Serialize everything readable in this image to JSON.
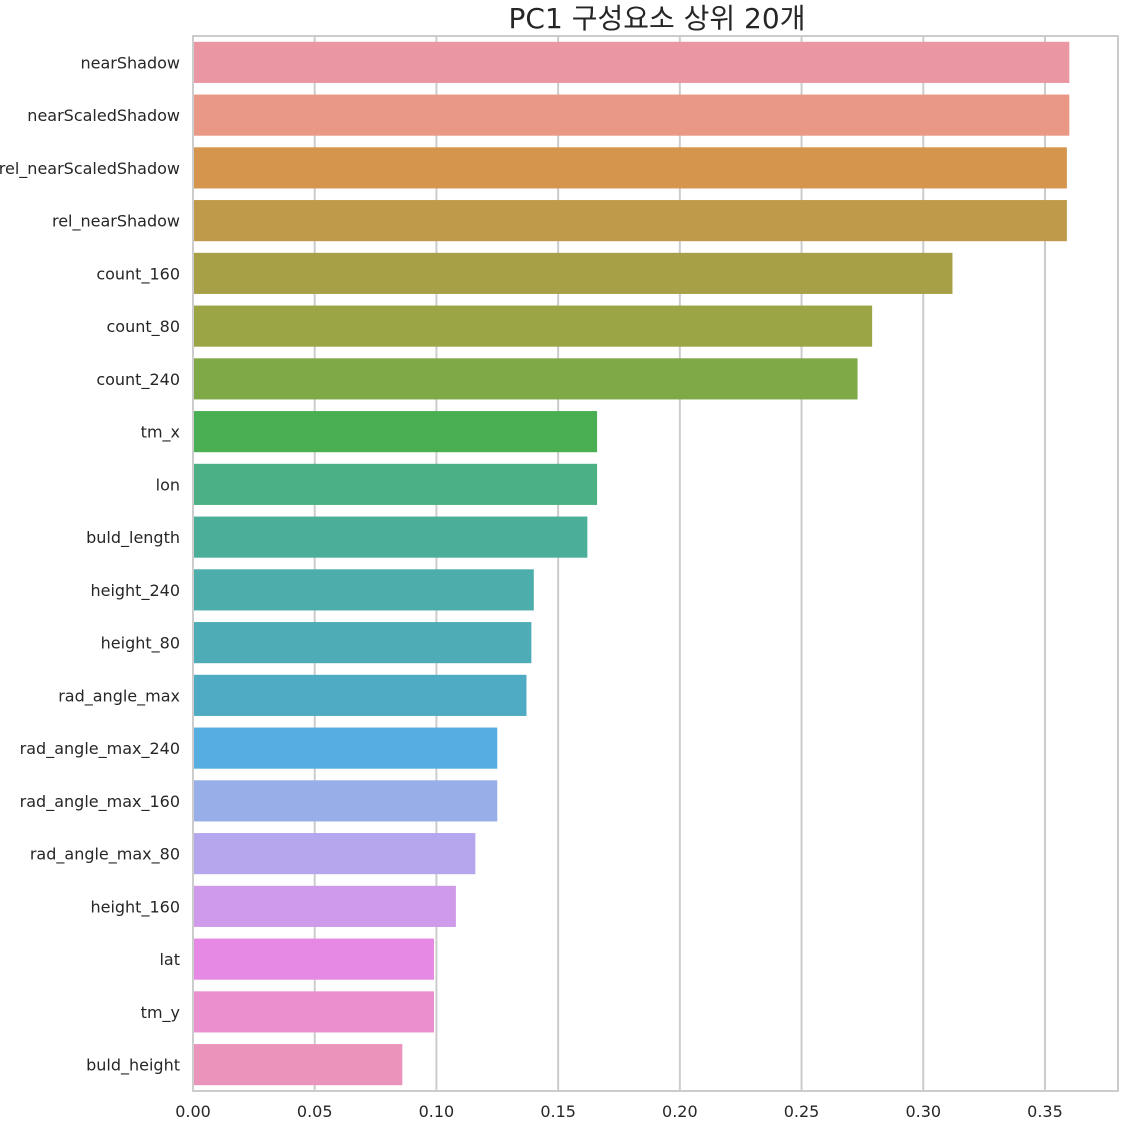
{
  "chart_data": {
    "type": "bar",
    "orientation": "horizontal",
    "title": "PC1 구성요소 상위 20개",
    "xlabel": "",
    "ylabel": "",
    "xlim": [
      0,
      0.38
    ],
    "xticks": [
      0.0,
      0.05,
      0.1,
      0.15,
      0.2,
      0.25,
      0.3,
      0.35
    ],
    "xtick_labels": [
      "0.00",
      "0.05",
      "0.10",
      "0.15",
      "0.20",
      "0.25",
      "0.30",
      "0.35"
    ],
    "grid": "vertical",
    "categories": [
      "nearShadow",
      "nearScaledShadow",
      "rel_nearScaledShadow",
      "rel_nearShadow",
      "count_160",
      "count_80",
      "count_240",
      "tm_x",
      "lon",
      "buld_length",
      "height_240",
      "height_80",
      "rad_angle_max",
      "rad_angle_max_240",
      "rad_angle_max_160",
      "rad_angle_max_80",
      "height_160",
      "lat",
      "tm_y",
      "buld_height"
    ],
    "values": [
      0.36,
      0.36,
      0.359,
      0.359,
      0.312,
      0.279,
      0.273,
      0.166,
      0.166,
      0.162,
      0.14,
      0.139,
      0.137,
      0.125,
      0.125,
      0.116,
      0.108,
      0.099,
      0.099,
      0.086
    ],
    "colors": [
      "#ea96a3",
      "#e89884",
      "#d5954c",
      "#be9a4a",
      "#a8a046",
      "#9ba546",
      "#7fa946",
      "#4aae53",
      "#4bb084",
      "#4bae99",
      "#4cadaa",
      "#4dacb5",
      "#4faac4",
      "#56ade0",
      "#97aee8",
      "#b5a6ee",
      "#cf9ae9",
      "#e689e4",
      "#ea90cf",
      "#ea94bb"
    ]
  }
}
